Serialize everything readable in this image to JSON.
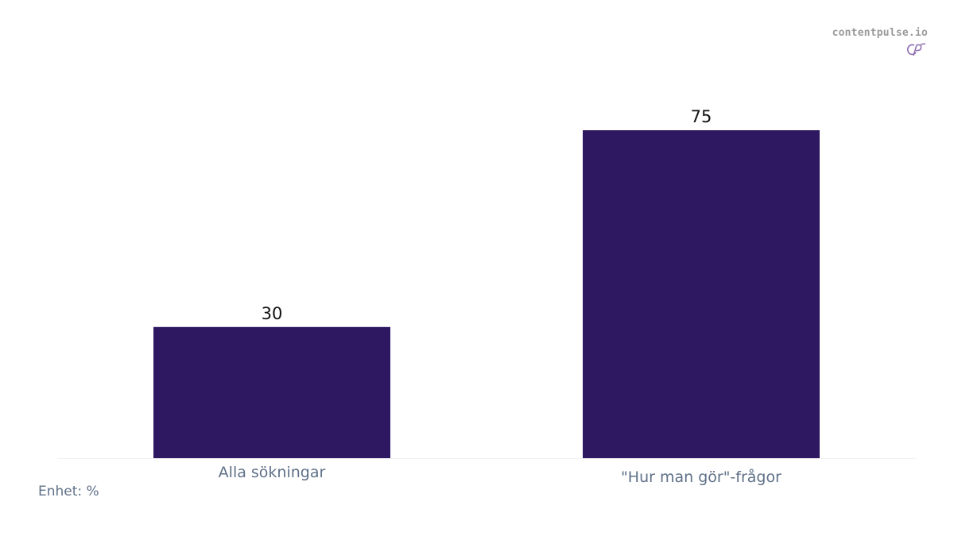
{
  "brand": {
    "name": "contentpulse.io",
    "logo_icon": "cp-monogram-icon",
    "color": "#9a9a9a",
    "logo_color": "#8f6fb0"
  },
  "unit_note": "Enhet: %",
  "chart_data": {
    "type": "bar",
    "title": "",
    "xlabel": "",
    "ylabel": "",
    "categories": [
      "Alla sökningar",
      "\"Hur man gör\"-frågor"
    ],
    "values": [
      30,
      75
    ],
    "value_labels": [
      "30",
      "75"
    ],
    "ylim": [
      0,
      75
    ],
    "grid": false,
    "legend": "none",
    "bar_color": "#2e1862",
    "label_color": "#111111",
    "tick_label_color": "#5f7088",
    "baseline_color": "#f1f1f1"
  }
}
